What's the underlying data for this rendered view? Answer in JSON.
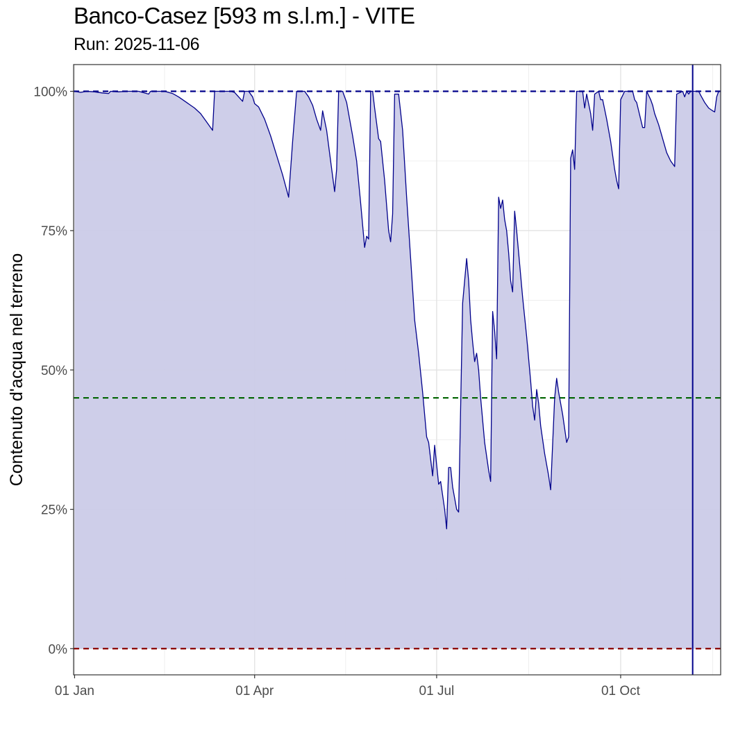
{
  "chart_data": {
    "type": "area",
    "title": "Banco-Casez [593 m s.l.m.] - VITE",
    "subtitle": "Run: 2025-11-06",
    "xlabel": "",
    "ylabel": "Contenuto d'acqua nel terreno",
    "x_ticks": [
      {
        "day": 0,
        "label": "01 Jan"
      },
      {
        "day": 90,
        "label": "01 Apr"
      },
      {
        "day": 181,
        "label": "01 Jul"
      },
      {
        "day": 273,
        "label": "01 Oct"
      }
    ],
    "y_ticks": [
      {
        "value": 0,
        "label": "0%"
      },
      {
        "value": 25,
        "label": "25%"
      },
      {
        "value": 50,
        "label": "50%"
      },
      {
        "value": 75,
        "label": "75%"
      },
      {
        "value": 100,
        "label": "100%"
      }
    ],
    "xlim_days": [
      -0.5,
      323
    ],
    "ylim": [
      -4.7,
      104.8
    ],
    "grid": true,
    "reference_lines": [
      {
        "value": 100,
        "color": "#00008b",
        "style": "dashed"
      },
      {
        "value": 45,
        "color": "#006400",
        "style": "dashed"
      },
      {
        "value": 0,
        "color": "#8b0000",
        "style": "dashed"
      }
    ],
    "run_marker_day": 309,
    "series": [
      {
        "line_color": "#00008b",
        "fill_color": "#cbcbe8",
        "points": [
          [
            0,
            100
          ],
          [
            3,
            99.8
          ],
          [
            6,
            100
          ],
          [
            10,
            99.9
          ],
          [
            14,
            99.7
          ],
          [
            17,
            99.6
          ],
          [
            18,
            100
          ],
          [
            22,
            99.9
          ],
          [
            26,
            100
          ],
          [
            32,
            100
          ],
          [
            37,
            99.5
          ],
          [
            38,
            100
          ],
          [
            45,
            100
          ],
          [
            49,
            99.6
          ],
          [
            52,
            99
          ],
          [
            54,
            98.5
          ],
          [
            56,
            98
          ],
          [
            58,
            97.5
          ],
          [
            60,
            97
          ],
          [
            63,
            96
          ],
          [
            66,
            94.5
          ],
          [
            68,
            93.5
          ],
          [
            69,
            93
          ],
          [
            70,
            100
          ],
          [
            75,
            100
          ],
          [
            78,
            100
          ],
          [
            80,
            99.8
          ],
          [
            82,
            99
          ],
          [
            84,
            98.2
          ],
          [
            85,
            100
          ],
          [
            87,
            100
          ],
          [
            89,
            99
          ],
          [
            90,
            97.8
          ],
          [
            92,
            97.2
          ],
          [
            95,
            95
          ],
          [
            98,
            92
          ],
          [
            101,
            88.5
          ],
          [
            104,
            85
          ],
          [
            107,
            81
          ],
          [
            109,
            91
          ],
          [
            111,
            100
          ],
          [
            115,
            100
          ],
          [
            117,
            99
          ],
          [
            119,
            97.5
          ],
          [
            121,
            95
          ],
          [
            123,
            93
          ],
          [
            124,
            96.5
          ],
          [
            126,
            93
          ],
          [
            128,
            87.5
          ],
          [
            130,
            82
          ],
          [
            131,
            86
          ],
          [
            132,
            100
          ],
          [
            134,
            100
          ],
          [
            136,
            98
          ],
          [
            138,
            94
          ],
          [
            139,
            92
          ],
          [
            141,
            87.5
          ],
          [
            143,
            80
          ],
          [
            145,
            72
          ],
          [
            146,
            74
          ],
          [
            147,
            73.5
          ],
          [
            148,
            100
          ],
          [
            149,
            100
          ],
          [
            150,
            97
          ],
          [
            152,
            91.5
          ],
          [
            153,
            91
          ],
          [
            155,
            84
          ],
          [
            157,
            75
          ],
          [
            158,
            73
          ],
          [
            159,
            78
          ],
          [
            160,
            99.5
          ],
          [
            162,
            99.5
          ],
          [
            164,
            93
          ],
          [
            166,
            81
          ],
          [
            168,
            70
          ],
          [
            170,
            59
          ],
          [
            172,
            53
          ],
          [
            174,
            46
          ],
          [
            176,
            38
          ],
          [
            177,
            37
          ],
          [
            179,
            31
          ],
          [
            180,
            36.5
          ],
          [
            181,
            33
          ],
          [
            182,
            29.5
          ],
          [
            183,
            30
          ],
          [
            185,
            25
          ],
          [
            186,
            21.5
          ],
          [
            187,
            32.5
          ],
          [
            188,
            32.5
          ],
          [
            189,
            29
          ],
          [
            190,
            27
          ],
          [
            191,
            25
          ],
          [
            192,
            24.5
          ],
          [
            194,
            62
          ],
          [
            196,
            70
          ],
          [
            197,
            66
          ],
          [
            198,
            59
          ],
          [
            199,
            55
          ],
          [
            200,
            51.5
          ],
          [
            201,
            53
          ],
          [
            202,
            50
          ],
          [
            203,
            45
          ],
          [
            205,
            37
          ],
          [
            207,
            32
          ],
          [
            208,
            30
          ],
          [
            209,
            60.5
          ],
          [
            210,
            57
          ],
          [
            211,
            52
          ],
          [
            212,
            81
          ],
          [
            213,
            79
          ],
          [
            214,
            80.5
          ],
          [
            215,
            77
          ],
          [
            216,
            75
          ],
          [
            217,
            71
          ],
          [
            218,
            66
          ],
          [
            219,
            64
          ],
          [
            220,
            78.5
          ],
          [
            221,
            75
          ],
          [
            222,
            71
          ],
          [
            224,
            63
          ],
          [
            226,
            56
          ],
          [
            228,
            48
          ],
          [
            229,
            43.5
          ],
          [
            230,
            41
          ],
          [
            231,
            46.5
          ],
          [
            232,
            44
          ],
          [
            233,
            40
          ],
          [
            235,
            35
          ],
          [
            237,
            31
          ],
          [
            238,
            28.5
          ],
          [
            240,
            45
          ],
          [
            241,
            48.5
          ],
          [
            242,
            46
          ],
          [
            244,
            42
          ],
          [
            245,
            39.5
          ],
          [
            246,
            37
          ],
          [
            247,
            38
          ],
          [
            248,
            88
          ],
          [
            249,
            89.5
          ],
          [
            250,
            86
          ],
          [
            251,
            100
          ],
          [
            254,
            100
          ],
          [
            255,
            97
          ],
          [
            256,
            99.5
          ],
          [
            258,
            96
          ],
          [
            259,
            93
          ],
          [
            260,
            99.5
          ],
          [
            262,
            100
          ],
          [
            263,
            98.5
          ],
          [
            264,
            98.5
          ],
          [
            266,
            95
          ],
          [
            268,
            91
          ],
          [
            270,
            86
          ],
          [
            271,
            84
          ],
          [
            272,
            82.5
          ],
          [
            273,
            98.5
          ],
          [
            275,
            100
          ],
          [
            279,
            100
          ],
          [
            280,
            98.5
          ],
          [
            281,
            98
          ],
          [
            283,
            95
          ],
          [
            284,
            93.5
          ],
          [
            285,
            93.5
          ],
          [
            286,
            100
          ],
          [
            288,
            98.5
          ],
          [
            289,
            97.5
          ],
          [
            290,
            96
          ],
          [
            292,
            94
          ],
          [
            294,
            91.5
          ],
          [
            296,
            89
          ],
          [
            298,
            87.5
          ],
          [
            300,
            86.5
          ],
          [
            301,
            99.5
          ],
          [
            304,
            100
          ],
          [
            305,
            99
          ],
          [
            306,
            100
          ],
          [
            307,
            99.5
          ],
          [
            308,
            100
          ],
          [
            312,
            100
          ],
          [
            313,
            99.3
          ],
          [
            315,
            98
          ],
          [
            316,
            97.5
          ],
          [
            317,
            97
          ],
          [
            319,
            96.5
          ],
          [
            320,
            96.3
          ],
          [
            321,
            99
          ],
          [
            322,
            100
          ],
          [
            323,
            100
          ]
        ]
      }
    ]
  }
}
